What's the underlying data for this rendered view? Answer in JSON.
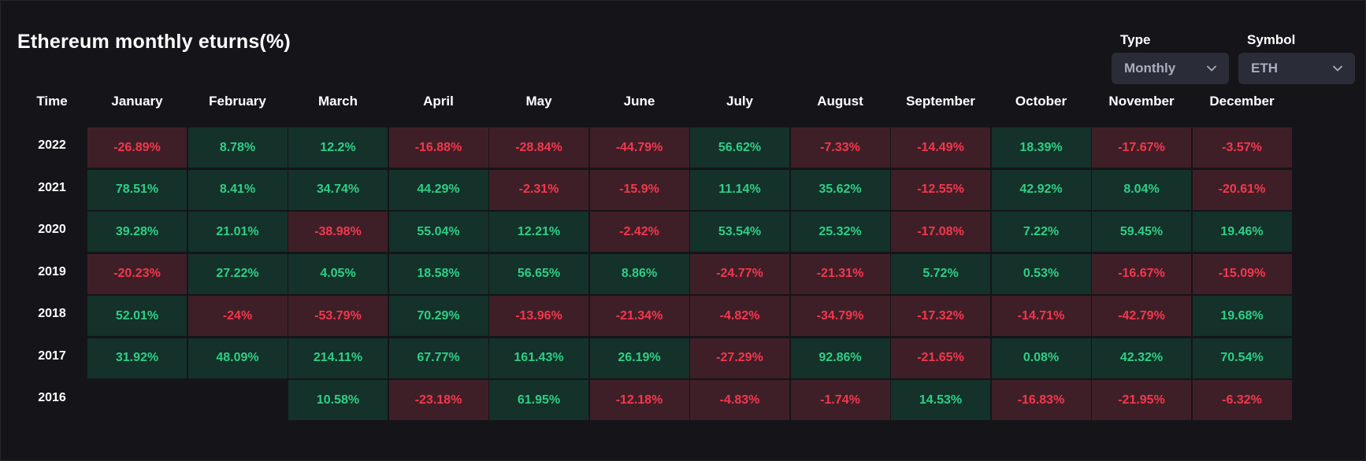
{
  "title": "Ethereum monthly eturns(%)",
  "filters": {
    "type": {
      "label": "Type",
      "value": "Monthly"
    },
    "symbol": {
      "label": "Symbol",
      "value": "ETH"
    }
  },
  "colors": {
    "positive_bg": "#14312a",
    "positive_text": "#2ecf85",
    "negative_bg": "#3f1f27",
    "negative_text": "#f3374e",
    "background": "#151519",
    "select_bg": "#2a2d37"
  },
  "table": {
    "time_header": "Time",
    "months": [
      "January",
      "February",
      "March",
      "April",
      "May",
      "June",
      "July",
      "August",
      "September",
      "October",
      "November",
      "December"
    ],
    "rows": [
      {
        "year": "2022",
        "values": [
          "-26.89%",
          "8.78%",
          "12.2%",
          "-16.88%",
          "-28.84%",
          "-44.79%",
          "56.62%",
          "-7.33%",
          "-14.49%",
          "18.39%",
          "-17.67%",
          "-3.57%"
        ]
      },
      {
        "year": "2021",
        "values": [
          "78.51%",
          "8.41%",
          "34.74%",
          "44.29%",
          "-2.31%",
          "-15.9%",
          "11.14%",
          "35.62%",
          "-12.55%",
          "42.92%",
          "8.04%",
          "-20.61%"
        ]
      },
      {
        "year": "2020",
        "values": [
          "39.28%",
          "21.01%",
          "-38.98%",
          "55.04%",
          "12.21%",
          "-2.42%",
          "53.54%",
          "25.32%",
          "-17.08%",
          "7.22%",
          "59.45%",
          "19.46%"
        ]
      },
      {
        "year": "2019",
        "values": [
          "-20.23%",
          "27.22%",
          "4.05%",
          "18.58%",
          "56.65%",
          "8.86%",
          "-24.77%",
          "-21.31%",
          "5.72%",
          "0.53%",
          "-16.67%",
          "-15.09%"
        ]
      },
      {
        "year": "2018",
        "values": [
          "52.01%",
          "-24%",
          "-53.79%",
          "70.29%",
          "-13.96%",
          "-21.34%",
          "-4.82%",
          "-34.79%",
          "-17.32%",
          "-14.71%",
          "-42.79%",
          "19.68%"
        ]
      },
      {
        "year": "2017",
        "values": [
          "31.92%",
          "48.09%",
          "214.11%",
          "67.77%",
          "161.43%",
          "26.19%",
          "-27.29%",
          "92.86%",
          "-21.65%",
          "0.08%",
          "42.32%",
          "70.54%"
        ]
      },
      {
        "year": "2016",
        "values": [
          "",
          "",
          "10.58%",
          "-23.18%",
          "61.95%",
          "-12.18%",
          "-4.83%",
          "-1.74%",
          "14.53%",
          "-16.83%",
          "-21.95%",
          "-6.32%"
        ]
      }
    ]
  }
}
